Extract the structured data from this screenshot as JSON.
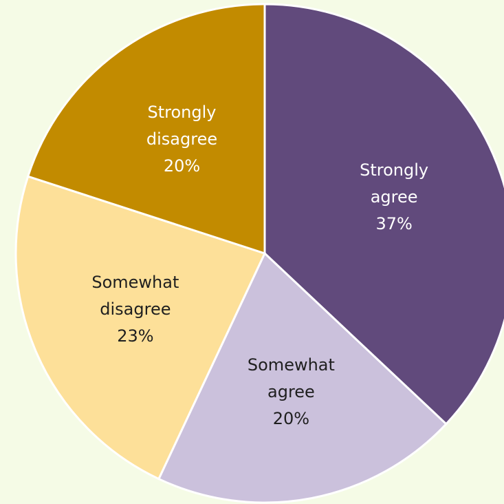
{
  "chart_data": {
    "type": "pie",
    "title": "",
    "slices": [
      {
        "category": "Strongly agree",
        "label_lines": [
          "Strongly",
          "agree"
        ],
        "value": 37,
        "value_label": "37%",
        "color": "#614a7c",
        "text_color": "#ffffff"
      },
      {
        "category": "Somewhat agree",
        "label_lines": [
          "Somewhat",
          "agree"
        ],
        "value": 20,
        "value_label": "20%",
        "color": "#cbc1dc",
        "text_color": "#1f1f1f"
      },
      {
        "category": "Somewhat disagree",
        "label_lines": [
          "Somewhat",
          "disagree"
        ],
        "value": 23,
        "value_label": "23%",
        "color": "#fde099",
        "text_color": "#1f1f1f"
      },
      {
        "category": "Strongly disagree",
        "label_lines": [
          "Strongly",
          "disagree"
        ],
        "value": 20,
        "value_label": "20%",
        "color": "#c28b00",
        "text_color": "#ffffff"
      }
    ],
    "start_angle_deg": 0,
    "direction": "clockwise",
    "legend": "none"
  },
  "colors": {
    "background": "#f5fbe6",
    "slice_border": "#ffffff"
  }
}
